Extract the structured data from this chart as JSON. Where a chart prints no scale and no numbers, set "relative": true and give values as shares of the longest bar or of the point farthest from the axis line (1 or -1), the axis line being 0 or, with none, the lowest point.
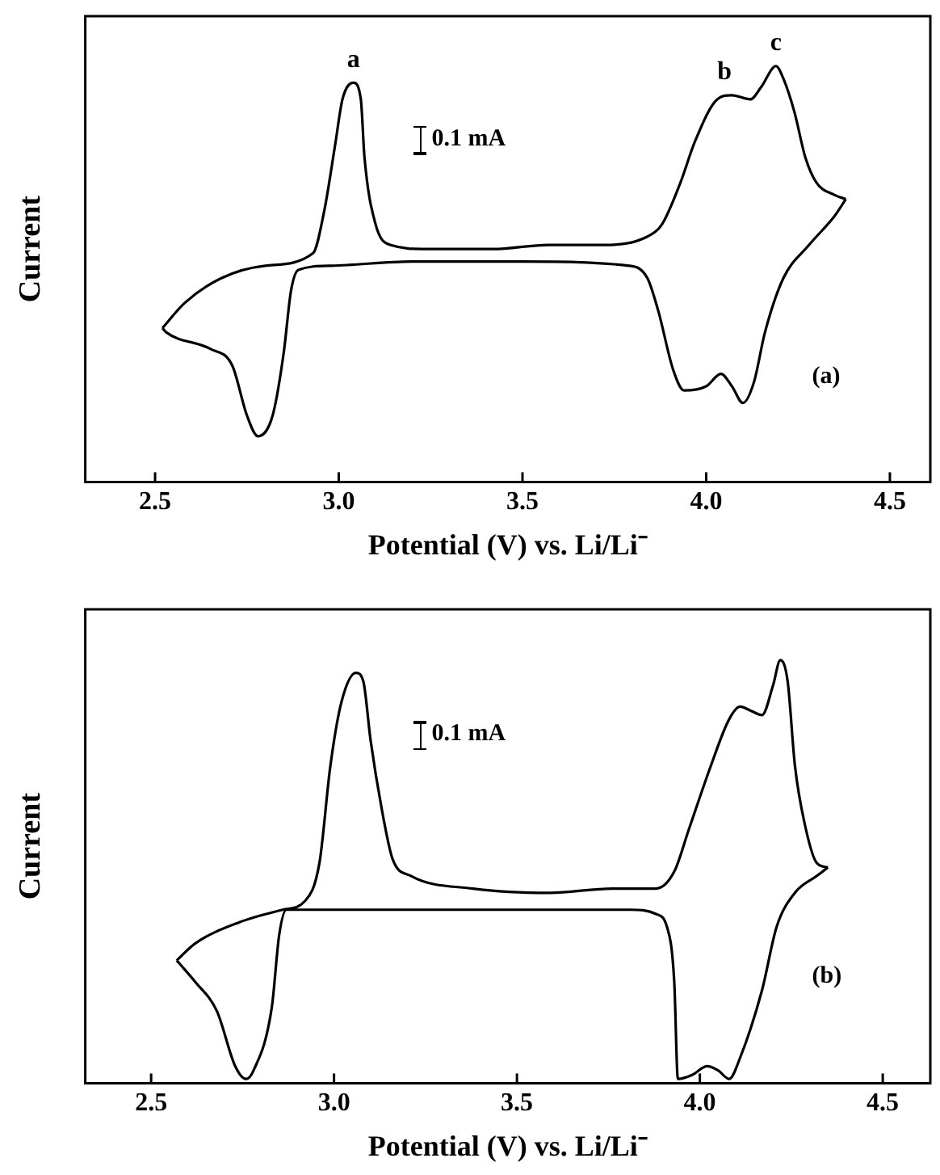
{
  "chart_data": [
    {
      "type": "line",
      "relative": true,
      "xlabel": "Potential (V) vs. Li/Li⁻",
      "ylabel": "Current",
      "xlim": [
        2.31,
        4.61
      ],
      "xticks": [
        {
          "value": 2.5,
          "label": "2.5"
        },
        {
          "value": 3,
          "label": "3.0"
        },
        {
          "value": 3.5,
          "label": "3.5"
        },
        {
          "value": 4,
          "label": "4.0"
        },
        {
          "value": 4.5,
          "label": "4.5"
        }
      ],
      "series": [
        {
          "color": "#000000",
          "x": [
            2.52,
            2.58,
            2.68,
            2.8,
            2.93,
            2.96,
            2.99,
            3.01,
            3.04,
            3.06,
            3.07,
            3.1,
            3.14,
            3.24,
            3.42,
            3.57,
            3.72,
            3.84,
            3.88,
            3.93,
            3.97,
            4.03,
            4.07,
            4.12,
            4.15,
            4.19,
            4.21,
            4.24,
            4.27,
            4.3,
            4.35,
            4.38
          ],
          "values": [
            0.37,
            0.43,
            0.49,
            0.52,
            0.55,
            0.65,
            0.81,
            0.92,
            0.96,
            0.92,
            0.78,
            0.62,
            0.57,
            0.56,
            0.56,
            0.57,
            0.57,
            0.59,
            0.62,
            0.72,
            0.82,
            0.92,
            0.93,
            0.92,
            0.95,
            1.0,
            0.97,
            0.89,
            0.78,
            0.72,
            0.69,
            0.68
          ]
        },
        {
          "color": "#000000",
          "x": [
            4.38,
            4.35,
            4.28,
            4.21,
            4.16,
            4.13,
            4.1,
            4.07,
            4.04,
            4.0,
            3.94,
            3.91,
            3.87,
            3.84,
            3.79,
            3.5,
            3.2,
            2.98,
            2.89,
            2.87,
            2.85,
            2.82,
            2.78,
            2.75,
            2.71,
            2.65,
            2.53,
            2.52
          ],
          "values": [
            0.68,
            0.64,
            0.57,
            0.49,
            0.36,
            0.24,
            0.19,
            0.23,
            0.26,
            0.23,
            0.22,
            0.27,
            0.41,
            0.49,
            0.52,
            0.53,
            0.53,
            0.52,
            0.51,
            0.46,
            0.31,
            0.16,
            0.11,
            0.16,
            0.28,
            0.32,
            0.36,
            0.37
          ]
        }
      ],
      "annotations": [
        {
          "text": "a",
          "x": 3.04,
          "y": 0.96
        },
        {
          "text": "b",
          "x": 4.05,
          "y": 0.93
        },
        {
          "text": "c",
          "x": 4.19,
          "y": 1.0
        },
        "0.1 mA",
        "(a)"
      ]
    },
    {
      "type": "line",
      "relative": true,
      "xlabel": "Potential (V) vs. Li/Li⁻",
      "ylabel": "Current",
      "xlim": [
        2.32,
        4.63
      ],
      "xticks": [
        {
          "value": 2.5,
          "label": "2.5"
        },
        {
          "value": 3,
          "label": "3.0"
        },
        {
          "value": 3.5,
          "label": "3.5"
        },
        {
          "value": 4,
          "label": "4.0"
        },
        {
          "value": 4.5,
          "label": "4.5"
        }
      ],
      "series": [
        {
          "color": "#000000",
          "x": [
            2.57,
            2.62,
            2.74,
            2.86,
            2.92,
            2.96,
            2.99,
            3.02,
            3.06,
            3.08,
            3.1,
            3.13,
            3.16,
            3.21,
            3.38,
            3.59,
            3.76,
            3.81,
            3.88,
            3.93,
            3.97,
            4.03,
            4.08,
            4.11,
            4.14,
            4.17,
            4.2,
            4.22,
            4.24,
            4.26,
            4.29,
            4.32,
            4.35
          ],
          "values": [
            0.29,
            0.33,
            0.38,
            0.41,
            0.43,
            0.52,
            0.75,
            0.9,
            0.97,
            0.95,
            0.81,
            0.65,
            0.53,
            0.49,
            0.46,
            0.45,
            0.46,
            0.46,
            0.46,
            0.5,
            0.6,
            0.75,
            0.86,
            0.89,
            0.88,
            0.87,
            0.94,
            1.0,
            0.95,
            0.75,
            0.6,
            0.52,
            0.51
          ]
        },
        {
          "color": "#000000",
          "x": [
            4.35,
            4.32,
            4.26,
            4.21,
            4.17,
            4.11,
            4.08,
            4.05,
            4.02,
            3.98,
            3.94,
            3.93,
            3.91,
            3.88,
            3.81,
            3.51,
            3.07,
            2.87,
            2.85,
            2.83,
            2.78,
            2.76,
            2.73,
            2.68,
            2.62,
            2.57
          ],
          "values": [
            0.51,
            0.49,
            0.45,
            0.37,
            0.22,
            0.06,
            0.01,
            0.03,
            0.04,
            0.02,
            0.01,
            0.24,
            0.37,
            0.4,
            0.41,
            0.41,
            0.41,
            0.41,
            0.35,
            0.18,
            0.03,
            0.01,
            0.04,
            0.17,
            0.24,
            0.29
          ]
        }
      ],
      "annotations": [
        "0.1 mA",
        "(b)"
      ]
    }
  ]
}
